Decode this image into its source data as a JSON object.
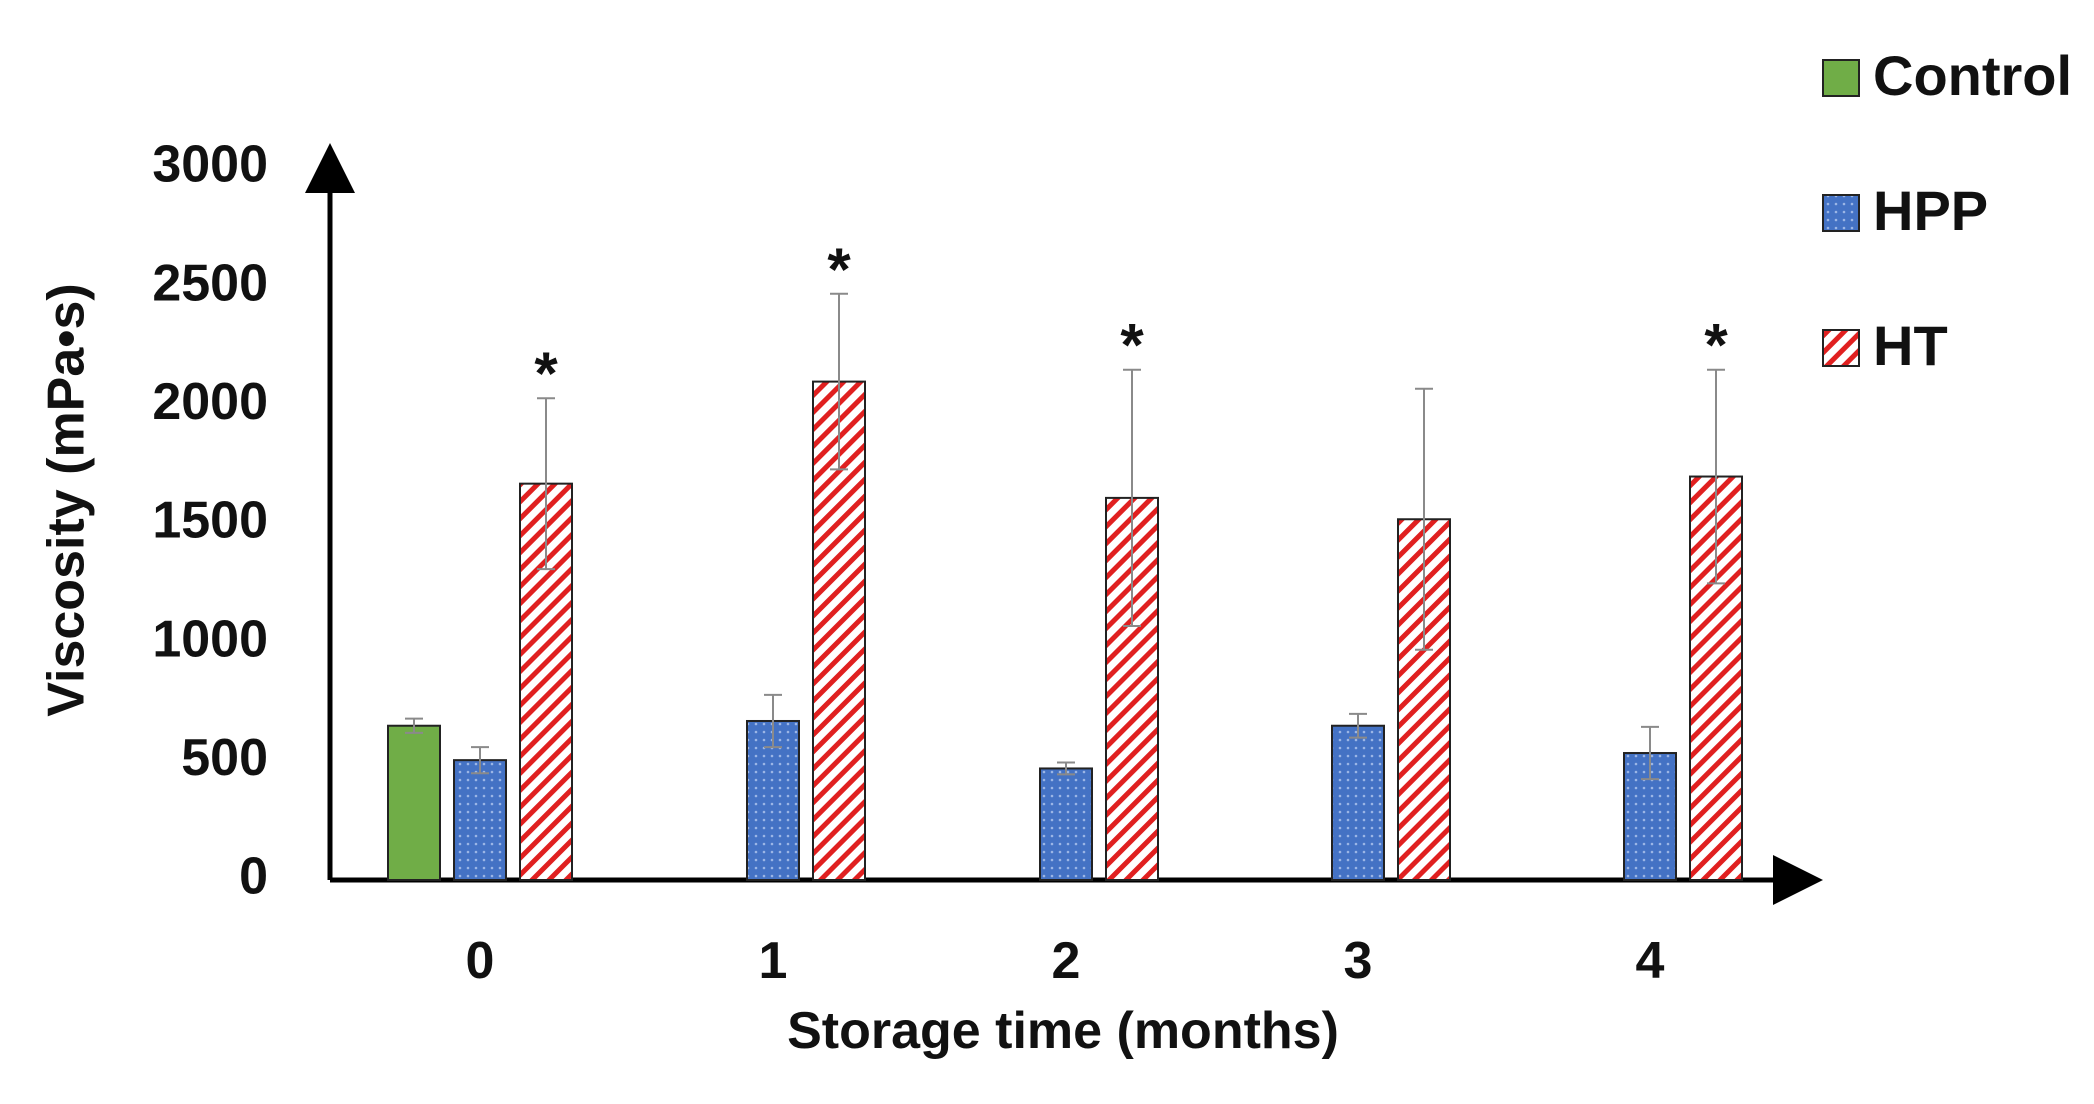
{
  "chart_data": {
    "type": "bar",
    "title": "",
    "xlabel": "Storage time (months)",
    "ylabel": "Viscosity (mPa•s)",
    "categories": [
      "0",
      "1",
      "2",
      "3",
      "4"
    ],
    "ylim": [
      0,
      3000
    ],
    "yticks": [
      "0",
      "500",
      "1000",
      "1500",
      "2000",
      "2500",
      "3000"
    ],
    "grid": false,
    "legend_position": "top-right",
    "series": [
      {
        "name": "Control",
        "color": "#70ad47",
        "pattern": "solid",
        "values": [
          650,
          null,
          null,
          null,
          null
        ],
        "errors": [
          30,
          null,
          null,
          null,
          null
        ]
      },
      {
        "name": "HPP",
        "color": "#4472c4",
        "pattern": "dotted",
        "values": [
          505,
          670,
          470,
          650,
          535
        ],
        "errors": [
          55,
          110,
          25,
          50,
          110
        ]
      },
      {
        "name": "HT",
        "color": "#e02020",
        "pattern": "diagonal-hatch",
        "values": [
          1670,
          2100,
          1610,
          1520,
          1700
        ],
        "errors": [
          360,
          370,
          540,
          550,
          450
        ]
      }
    ],
    "significance": {
      "symbol": "*",
      "series": "HT",
      "marked": [
        true,
        true,
        true,
        false,
        true
      ]
    }
  }
}
